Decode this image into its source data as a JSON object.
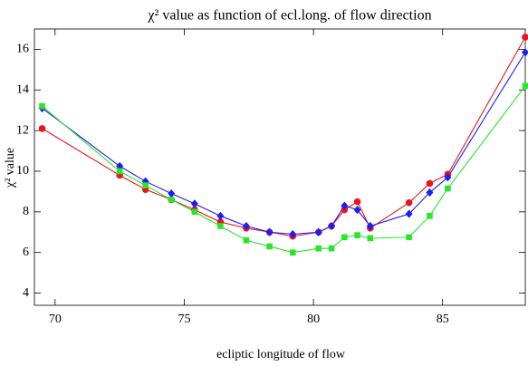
{
  "chart_data": {
    "type": "line",
    "title": "χ² value as function of ecl.long. of flow direction",
    "x_label": "ecliptic longitude of flow",
    "y_label": "χ² value",
    "x": [
      69.5,
      72.5,
      73.5,
      74.5,
      75.4,
      76.4,
      77.4,
      78.3,
      79.2,
      80.2,
      80.7,
      81.2,
      81.7,
      82.2,
      83.7,
      84.5,
      85.2,
      88.2
    ],
    "series": [
      {
        "color": "#e8141e",
        "marker": "circle",
        "values": [
          12.1,
          9.8,
          9.1,
          8.6,
          8.1,
          7.5,
          7.2,
          7.0,
          6.8,
          7.0,
          7.3,
          8.1,
          8.5,
          7.2,
          8.45,
          9.4,
          9.85,
          16.6
        ]
      },
      {
        "color": "#1e1ef0",
        "marker": "diamond",
        "values": [
          13.1,
          10.25,
          9.5,
          8.9,
          8.4,
          7.8,
          7.3,
          7.0,
          6.9,
          7.0,
          7.3,
          8.3,
          8.1,
          7.3,
          7.9,
          8.95,
          9.7,
          15.85
        ]
      },
      {
        "color": "#28e628",
        "marker": "square",
        "values": [
          13.2,
          10.0,
          9.3,
          8.6,
          8.0,
          7.3,
          6.6,
          6.3,
          6.0,
          6.2,
          6.2,
          6.75,
          6.85,
          6.7,
          6.75,
          7.8,
          9.15,
          14.2
        ]
      }
    ],
    "xlim": [
      69.2,
      88.2
    ],
    "xticks": [
      70,
      75,
      80,
      85
    ],
    "ylim": [
      3.4,
      17
    ],
    "yticks": [
      4,
      6,
      8,
      10,
      12,
      14,
      16
    ],
    "grid": false
  }
}
